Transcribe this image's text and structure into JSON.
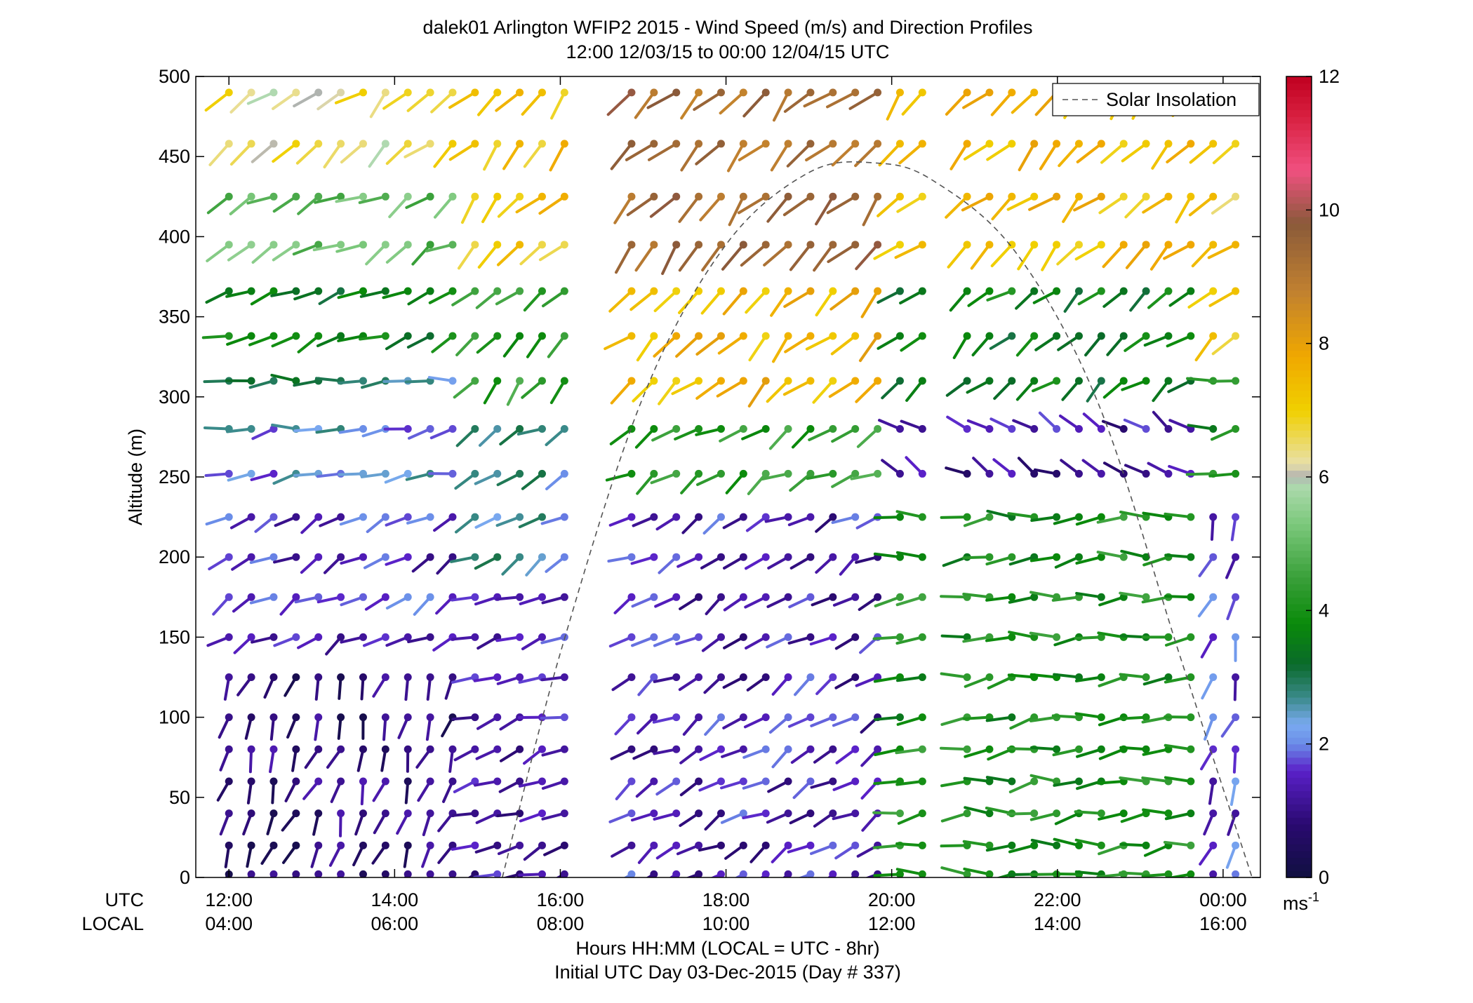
{
  "chart_data": {
    "type": "wind-barb-profile",
    "title": "dalek01 Arlington WFIP2 2015 - Wind Speed (m/s) and Direction Profiles",
    "subtitle": "12:00 12/03/15 to 00:00 12/04/15  UTC",
    "ylabel": "Altitude (m)",
    "xlabel": "Hours HH:MM  (LOCAL = UTC - 8hr)",
    "xlabel2": "Initial UTC Day 03-Dec-2015 (Day # 337)",
    "row_label_utc": "UTC",
    "row_label_local": "LOCAL",
    "x_range_hours": [
      11.6,
      24.45
    ],
    "y_range": [
      0,
      500
    ],
    "yticks": [
      0,
      50,
      100,
      150,
      200,
      250,
      300,
      350,
      400,
      450,
      500
    ],
    "xticks": [
      {
        "hour": 12,
        "utc": "12:00",
        "local": "04:00"
      },
      {
        "hour": 14,
        "utc": "14:00",
        "local": "06:00"
      },
      {
        "hour": 16,
        "utc": "16:00",
        "local": "08:00"
      },
      {
        "hour": 18,
        "utc": "18:00",
        "local": "10:00"
      },
      {
        "hour": 20,
        "utc": "20:00",
        "local": "12:00"
      },
      {
        "hour": 22,
        "utc": "22:00",
        "local": "14:00"
      },
      {
        "hour": 24,
        "utc": "00:00",
        "local": "16:00"
      }
    ],
    "legend": {
      "label": "Solar Insolation",
      "placement": "top-right"
    },
    "colorbar": {
      "range": [
        0,
        12
      ],
      "ticks": [
        0,
        2,
        4,
        6,
        8,
        10,
        12
      ],
      "unit_base": "ms",
      "unit_exp": "-1",
      "stops": [
        {
          "v": 0,
          "c": "#101040"
        },
        {
          "v": 0.8,
          "c": "#2a0a70"
        },
        {
          "v": 1.6,
          "c": "#5a20c8"
        },
        {
          "v": 2.0,
          "c": "#6a8ce8"
        },
        {
          "v": 2.3,
          "c": "#7aaaf0"
        },
        {
          "v": 2.7,
          "c": "#3a8a8a"
        },
        {
          "v": 3.2,
          "c": "#0a6a2a"
        },
        {
          "v": 3.8,
          "c": "#0a8a0a"
        },
        {
          "v": 4.5,
          "c": "#3aa03a"
        },
        {
          "v": 5.3,
          "c": "#7cc87c"
        },
        {
          "v": 5.9,
          "c": "#b0dab0"
        },
        {
          "v": 6.0,
          "c": "#b0b0b0"
        },
        {
          "v": 6.2,
          "c": "#e8e0a8"
        },
        {
          "v": 7.0,
          "c": "#f0d000"
        },
        {
          "v": 7.8,
          "c": "#f0a800"
        },
        {
          "v": 8.8,
          "c": "#c08030"
        },
        {
          "v": 9.8,
          "c": "#8a5a3a"
        },
        {
          "v": 10.6,
          "c": "#f05080"
        },
        {
          "v": 11.4,
          "c": "#d82040"
        },
        {
          "v": 12.0,
          "c": "#c00020"
        }
      ]
    },
    "solar_insolation_curve": {
      "hours": [
        15.3,
        16.0,
        17.0,
        18.0,
        19.0,
        19.8,
        20.5,
        21.5,
        22.5,
        23.5,
        24.35
      ],
      "altitude_equiv": [
        0,
        140,
        300,
        395,
        440,
        446,
        435,
        390,
        295,
        135,
        0
      ]
    },
    "profile_altitudes": [
      2,
      20,
      40,
      60,
      80,
      100,
      125,
      150,
      175,
      200,
      225,
      252,
      280,
      310,
      338,
      366,
      395,
      425,
      458,
      490
    ],
    "barb_time_step_hours": 0.27,
    "data_gaps_hours": [
      [
        14.85,
        14.95
      ],
      [
        16.05,
        16.75
      ],
      [
        19.85,
        19.95
      ],
      [
        20.45,
        20.85
      ]
    ],
    "regimes": [
      {
        "t0": 11.6,
        "t1": 14.9,
        "z0": 0,
        "z1": 150,
        "speed": 0.8,
        "dir": 200
      },
      {
        "t0": 11.6,
        "t1": 14.9,
        "z0": 150,
        "z1": 240,
        "speed": 1.5,
        "dir": 240
      },
      {
        "t0": 11.6,
        "t1": 14.9,
        "z0": 240,
        "z1": 300,
        "speed": 2.2,
        "dir": 265
      },
      {
        "t0": 11.6,
        "t1": 14.9,
        "z0": 300,
        "z1": 330,
        "speed": 2.8,
        "dir": 265
      },
      {
        "t0": 11.6,
        "t1": 14.9,
        "z0": 330,
        "z1": 380,
        "speed": 3.6,
        "dir": 250
      },
      {
        "t0": 11.6,
        "t1": 14.9,
        "z0": 380,
        "z1": 430,
        "speed": 5.0,
        "dir": 240
      },
      {
        "t0": 11.6,
        "t1": 14.9,
        "z0": 430,
        "z1": 510,
        "speed": 6.5,
        "dir": 230
      },
      {
        "t0": 14.9,
        "t1": 16.1,
        "z0": 0,
        "z1": 200,
        "speed": 1.3,
        "dir": 250
      },
      {
        "t0": 14.9,
        "t1": 16.1,
        "z0": 200,
        "z1": 300,
        "speed": 2.5,
        "dir": 240
      },
      {
        "t0": 14.9,
        "t1": 16.1,
        "z0": 300,
        "z1": 380,
        "speed": 4.2,
        "dir": 225
      },
      {
        "t0": 14.9,
        "t1": 16.1,
        "z0": 380,
        "z1": 510,
        "speed": 7.2,
        "dir": 225
      },
      {
        "t0": 16.7,
        "t1": 19.9,
        "z0": 0,
        "z1": 240,
        "speed": 1.4,
        "dir": 240
      },
      {
        "t0": 16.7,
        "t1": 19.9,
        "z0": 240,
        "z1": 300,
        "speed": 4.3,
        "dir": 240
      },
      {
        "t0": 16.7,
        "t1": 19.9,
        "z0": 300,
        "z1": 380,
        "speed": 7.5,
        "dir": 225
      },
      {
        "t0": 16.7,
        "t1": 19.9,
        "z0": 380,
        "z1": 510,
        "speed": 9.3,
        "dir": 225
      },
      {
        "t0": 19.9,
        "t1": 23.8,
        "z0": 0,
        "z1": 230,
        "speed": 4.0,
        "dir": 265
      },
      {
        "t0": 19.9,
        "t1": 23.8,
        "z0": 230,
        "z1": 300,
        "speed": 1.2,
        "dir": 300
      },
      {
        "t0": 19.9,
        "t1": 23.8,
        "z0": 300,
        "z1": 380,
        "speed": 3.6,
        "dir": 230
      },
      {
        "t0": 19.9,
        "t1": 23.8,
        "z0": 380,
        "z1": 510,
        "speed": 7.4,
        "dir": 225
      },
      {
        "t0": 23.8,
        "t1": 24.45,
        "z0": 0,
        "z1": 230,
        "speed": 1.7,
        "dir": 200
      },
      {
        "t0": 23.8,
        "t1": 24.45,
        "z0": 230,
        "z1": 330,
        "speed": 3.8,
        "dir": 260
      },
      {
        "t0": 23.8,
        "t1": 24.45,
        "z0": 330,
        "z1": 510,
        "speed": 7.0,
        "dir": 230
      }
    ]
  }
}
